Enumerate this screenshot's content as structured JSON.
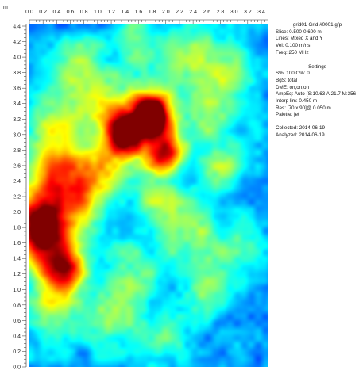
{
  "chart_data": {
    "type": "heatmap",
    "unit_label": "m",
    "x_ticks": [
      "0.0",
      "0.2",
      "0.4",
      "0.6",
      "0.8",
      "1.0",
      "1.2",
      "1.4",
      "1.6",
      "1.8",
      "2.0",
      "2.2",
      "2.4",
      "2.6",
      "2.8",
      "3.0",
      "3.2",
      "3.4"
    ],
    "y_ticks": [
      "4.4",
      "4.2",
      "4.0",
      "3.8",
      "3.6",
      "3.4",
      "3.2",
      "3.0",
      "2.8",
      "2.6",
      "2.4",
      "2.2",
      "2.0",
      "1.8",
      "1.6",
      "1.4",
      "1.2",
      "1.0",
      "0.8",
      "0.6",
      "0.4",
      "0.2",
      "0.0"
    ],
    "xlim": [
      0,
      3.45
    ],
    "ylim": [
      0,
      4.45
    ],
    "colormap": "jet",
    "background_color": "#00008f",
    "hotspots": [
      {
        "x": 1.78,
        "y": 3.25,
        "r": 0.15,
        "v": 1.0
      },
      {
        "x": 1.78,
        "y": 3.25,
        "r": 0.28,
        "v": 0.55
      },
      {
        "x": 1.38,
        "y": 3.02,
        "r": 0.18,
        "v": 0.65
      },
      {
        "x": 2.0,
        "y": 2.75,
        "r": 0.17,
        "v": 0.7
      },
      {
        "x": 1.55,
        "y": 3.0,
        "r": 0.35,
        "v": 0.35
      },
      {
        "x": 0.2,
        "y": 1.95,
        "r": 0.35,
        "v": 0.6
      },
      {
        "x": 0.15,
        "y": 1.75,
        "r": 0.22,
        "v": 0.5
      },
      {
        "x": 0.55,
        "y": 1.25,
        "r": 0.22,
        "v": 0.55
      },
      {
        "x": 0.3,
        "y": 1.4,
        "r": 0.3,
        "v": 0.4
      },
      {
        "x": 0.4,
        "y": 3.2,
        "r": 0.35,
        "v": 0.4
      },
      {
        "x": 0.45,
        "y": 2.5,
        "r": 0.3,
        "v": 0.45
      },
      {
        "x": 0.8,
        "y": 2.2,
        "r": 0.3,
        "v": 0.35
      },
      {
        "x": 1.05,
        "y": 3.4,
        "r": 0.25,
        "v": 0.35
      },
      {
        "x": 1.1,
        "y": 2.6,
        "r": 0.25,
        "v": 0.35
      },
      {
        "x": 0.75,
        "y": 3.9,
        "r": 0.25,
        "v": 0.35
      },
      {
        "x": 1.55,
        "y": 4.2,
        "r": 0.25,
        "v": 0.3
      },
      {
        "x": 2.4,
        "y": 4.0,
        "r": 0.3,
        "v": 0.4
      },
      {
        "x": 2.7,
        "y": 3.3,
        "r": 0.3,
        "v": 0.35
      },
      {
        "x": 2.8,
        "y": 2.55,
        "r": 0.25,
        "v": 0.3
      },
      {
        "x": 2.3,
        "y": 1.8,
        "r": 0.3,
        "v": 0.35
      },
      {
        "x": 2.6,
        "y": 1.1,
        "r": 0.3,
        "v": 0.3
      },
      {
        "x": 1.5,
        "y": 1.2,
        "r": 0.3,
        "v": 0.3
      },
      {
        "x": 1.2,
        "y": 0.6,
        "r": 0.3,
        "v": 0.3
      },
      {
        "x": 0.35,
        "y": 0.7,
        "r": 0.3,
        "v": 0.3
      },
      {
        "x": 2.0,
        "y": 0.4,
        "r": 0.3,
        "v": 0.25
      },
      {
        "x": 3.1,
        "y": 1.6,
        "r": 0.25,
        "v": 0.25
      },
      {
        "x": 1.85,
        "y": 2.2,
        "r": 0.25,
        "v": 0.28
      },
      {
        "x": 3.0,
        "y": 3.9,
        "r": 0.25,
        "v": 0.25
      }
    ]
  },
  "info": {
    "title": "grid01-Grid #0001.gfp",
    "lines": [
      "Slice: 0.500-0.600 m",
      "Lines: Mixed X and Y",
      "Vel: 0.100 m/ns",
      "Freq: 250 MHz"
    ],
    "settings_heading": "Settings",
    "settings": [
      "S%: 100  C%: 0",
      "BgS: total",
      "DME: on,on,on",
      "AmpEq: Auto (S:10.63 A:21.7 M:356",
      "Interp lim: 0.450 m",
      "Res: [70 x 90]@ 0.050 m",
      "Palette: jet"
    ],
    "dates": [
      "Collected: 2014-06-19",
      "Analyzed: 2014-06-19"
    ]
  }
}
